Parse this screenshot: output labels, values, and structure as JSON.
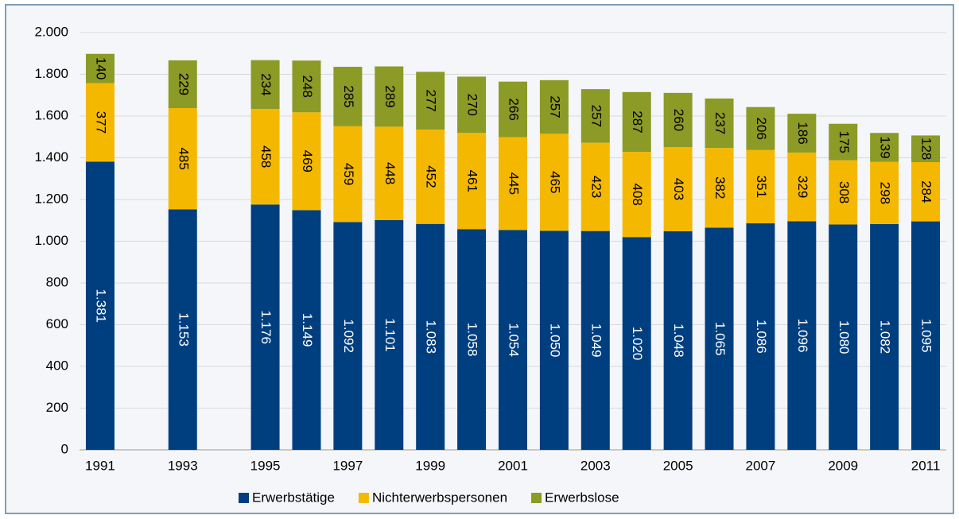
{
  "chart_data": {
    "type": "stacked_bar",
    "categories": [
      "1991",
      null,
      "1993",
      null,
      "1995",
      null,
      "1997",
      null,
      "1999",
      null,
      "2001",
      null,
      "2003",
      null,
      "2005",
      null,
      "2007",
      null,
      "2009",
      null,
      "2011"
    ],
    "series": [
      {
        "name": "Erwerbstätige",
        "color": "#003f7f",
        "values": [
          1381,
          null,
          1153,
          null,
          1176,
          1149,
          1092,
          1101,
          1083,
          1058,
          1054,
          1050,
          1049,
          1020,
          1048,
          1065,
          1086,
          1096,
          1080,
          1082,
          1095
        ],
        "value_labels": [
          "1.381",
          null,
          "1.153",
          null,
          "1.176",
          "1.149",
          "1.092",
          "1.101",
          "1.083",
          "1.058",
          "1.054",
          "1.050",
          "1.049",
          "1.020",
          "1.048",
          "1.065",
          "1.086",
          "1.096",
          "1.080",
          "1.082",
          "1.095"
        ]
      },
      {
        "name": "Nichterwerbspersonen",
        "color": "#f5b800",
        "values": [
          377,
          null,
          485,
          null,
          458,
          469,
          459,
          448,
          452,
          461,
          445,
          465,
          423,
          408,
          403,
          382,
          351,
          329,
          308,
          298,
          284
        ]
      },
      {
        "name": "Erwerbslose",
        "color": "#8c9a26",
        "values": [
          140,
          null,
          229,
          null,
          234,
          248,
          285,
          289,
          277,
          270,
          266,
          257,
          257,
          287,
          260,
          237,
          206,
          186,
          175,
          139,
          128
        ]
      }
    ],
    "ylim": [
      0,
      2000
    ],
    "yticks": [
      0,
      200,
      400,
      600,
      800,
      {
        "value": 1000,
        "label": "1.000"
      },
      {
        "value": 1200,
        "label": "1.200"
      },
      {
        "value": 1400,
        "label": "1.400"
      },
      {
        "value": 1600,
        "label": "1.600"
      },
      {
        "value": 1800,
        "label": "1.800"
      },
      {
        "value": 2000,
        "label": "2.000"
      }
    ],
    "grid": true
  }
}
